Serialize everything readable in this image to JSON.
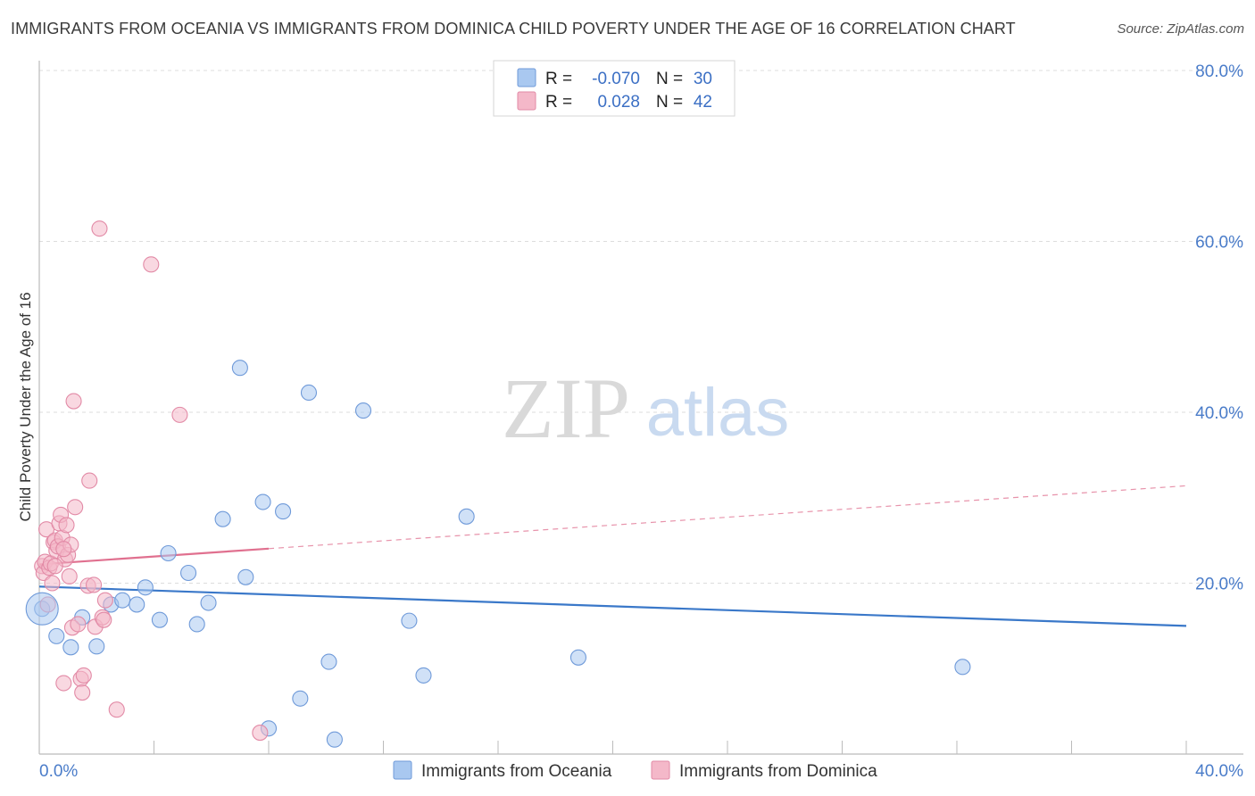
{
  "title": "IMMIGRANTS FROM OCEANIA VS IMMIGRANTS FROM DOMINICA CHILD POVERTY UNDER THE AGE OF 16 CORRELATION CHART",
  "source": "Source: ZipAtlas.com",
  "watermark": {
    "zip": "ZIP",
    "atlas": "atlas"
  },
  "legend": {
    "rows": [
      {
        "r_label": "R =",
        "r_value": "-0.070",
        "n_label": "N =",
        "n_value": "30",
        "color": "#a9c8f0"
      },
      {
        "r_label": "R =",
        "r_value": "0.028",
        "n_label": "N =",
        "n_value": "42",
        "color": "#f4b8c9"
      }
    ]
  },
  "chart_data": {
    "type": "scatter",
    "title": "IMMIGRANTS FROM OCEANIA VS IMMIGRANTS FROM DOMINICA CHILD POVERTY UNDER THE AGE OF 16 CORRELATION CHART",
    "xlabel": "",
    "ylabel": "Child Poverty Under the Age of 16",
    "xlim": [
      0,
      40
    ],
    "ylim": [
      0,
      80
    ],
    "x_tick_labels": [
      "0.0%",
      "40.0%"
    ],
    "y_ticks": [
      20,
      40,
      60,
      80
    ],
    "y_tick_labels": [
      "20.0%",
      "40.0%",
      "60.0%",
      "80.0%"
    ],
    "grid": true,
    "series": [
      {
        "name": "Immigrants from Oceania",
        "color": "#a9c8f0",
        "stroke": "#6f9ad9",
        "points": [
          [
            0.1,
            17.0
          ],
          [
            0.6,
            13.8
          ],
          [
            1.1,
            12.5
          ],
          [
            1.5,
            16.0
          ],
          [
            2.0,
            12.6
          ],
          [
            2.5,
            17.5
          ],
          [
            2.9,
            18.0
          ],
          [
            3.4,
            17.5
          ],
          [
            3.7,
            19.5
          ],
          [
            4.2,
            15.7
          ],
          [
            4.5,
            23.5
          ],
          [
            5.2,
            21.2
          ],
          [
            5.5,
            15.2
          ],
          [
            5.9,
            17.7
          ],
          [
            6.4,
            27.5
          ],
          [
            7.0,
            45.2
          ],
          [
            7.2,
            20.7
          ],
          [
            7.8,
            29.5
          ],
          [
            8.0,
            3.0
          ],
          [
            8.5,
            28.4
          ],
          [
            9.1,
            6.5
          ],
          [
            9.4,
            42.3
          ],
          [
            10.1,
            10.8
          ],
          [
            10.3,
            1.7
          ],
          [
            11.3,
            40.2
          ],
          [
            12.9,
            15.6
          ],
          [
            13.4,
            9.2
          ],
          [
            14.9,
            27.8
          ],
          [
            18.8,
            11.3
          ],
          [
            32.2,
            10.2
          ]
        ],
        "trend": {
          "x": [
            0,
            40
          ],
          "y": [
            19.6,
            15.0
          ],
          "solid_to": 40
        }
      },
      {
        "name": "Immigrants from Dominica",
        "color": "#f4b8c9",
        "stroke": "#e28aa6",
        "points": [
          [
            0.1,
            22.0
          ],
          [
            0.15,
            21.2
          ],
          [
            0.2,
            22.5
          ],
          [
            0.25,
            26.3
          ],
          [
            0.3,
            17.5
          ],
          [
            0.35,
            21.8
          ],
          [
            0.4,
            22.3
          ],
          [
            0.45,
            20.0
          ],
          [
            0.5,
            24.8
          ],
          [
            0.55,
            25.0
          ],
          [
            0.6,
            23.8
          ],
          [
            0.65,
            24.3
          ],
          [
            0.7,
            27.0
          ],
          [
            0.75,
            28.0
          ],
          [
            0.8,
            25.3
          ],
          [
            0.85,
            8.3
          ],
          [
            0.9,
            22.8
          ],
          [
            0.95,
            26.8
          ],
          [
            1.0,
            23.3
          ],
          [
            1.05,
            20.8
          ],
          [
            1.1,
            24.5
          ],
          [
            1.15,
            14.8
          ],
          [
            1.2,
            41.3
          ],
          [
            1.25,
            28.9
          ],
          [
            1.35,
            15.2
          ],
          [
            1.45,
            8.8
          ],
          [
            1.5,
            7.2
          ],
          [
            1.55,
            9.2
          ],
          [
            1.7,
            19.7
          ],
          [
            1.75,
            32.0
          ],
          [
            1.9,
            19.8
          ],
          [
            1.95,
            14.9
          ],
          [
            2.1,
            61.5
          ],
          [
            2.2,
            16.0
          ],
          [
            2.25,
            15.7
          ],
          [
            2.3,
            18.0
          ],
          [
            2.7,
            5.2
          ],
          [
            3.9,
            57.3
          ],
          [
            4.9,
            39.7
          ],
          [
            7.7,
            2.5
          ],
          [
            0.55,
            22.0
          ],
          [
            0.85,
            24.0
          ]
        ],
        "trend": {
          "x": [
            0,
            40
          ],
          "y": [
            22.2,
            31.4
          ],
          "solid_to": 8.0
        }
      }
    ]
  },
  "bottom_legend": [
    {
      "label": "Immigrants from Oceania",
      "color": "#a9c8f0",
      "stroke": "#6f9ad9"
    },
    {
      "label": "Immigrants from Dominica",
      "color": "#f4b8c9",
      "stroke": "#e28aa6"
    }
  ]
}
